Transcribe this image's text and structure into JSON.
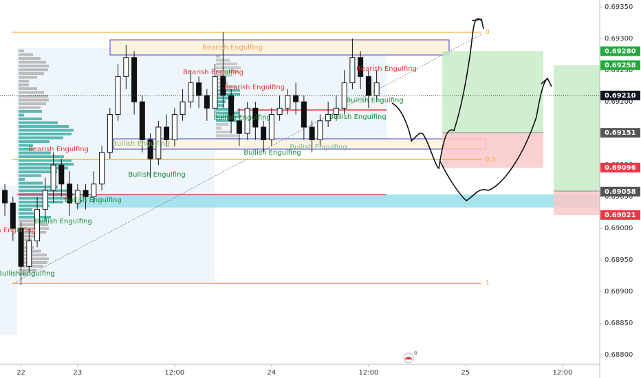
{
  "chart_data": {
    "type": "candlestick",
    "x": [
      15,
      16,
      17,
      18,
      19,
      20,
      21,
      22,
      23,
      24,
      25,
      26,
      27,
      28,
      29,
      30,
      31,
      32,
      33,
      34,
      35,
      36,
      37,
      38,
      39,
      40,
      41,
      42,
      43,
      44,
      45,
      46,
      47,
      48,
      49,
      50,
      51,
      52,
      53,
      54,
      55,
      56,
      57,
      58,
      59,
      60,
      61
    ],
    "open": [
      0.6906,
      0.6904,
      0.69,
      0.6894,
      0.6898,
      0.6903,
      0.6906,
      0.691,
      0.6907,
      0.6904,
      0.6906,
      0.6905,
      0.6907,
      0.6912,
      0.6918,
      0.6924,
      0.6927,
      0.692,
      0.6914,
      0.6911,
      0.6916,
      0.6914,
      0.6918,
      0.692,
      0.6923,
      0.6921,
      0.6919,
      0.6924,
      0.6921,
      0.6917,
      0.6915,
      0.6919,
      0.6916,
      0.6914,
      0.6918,
      0.6919,
      0.6921,
      0.692,
      0.6916,
      0.6914,
      0.6917,
      0.6918,
      0.6919,
      0.6923,
      0.6927,
      0.6924,
      0.6921
    ],
    "high": [
      0.6907,
      0.6905,
      0.6901,
      0.69,
      0.6905,
      0.6908,
      0.6912,
      0.6911,
      0.6909,
      0.6907,
      0.6907,
      0.6909,
      0.6913,
      0.6919,
      0.6926,
      0.6929,
      0.6928,
      0.6921,
      0.6915,
      0.6917,
      0.6918,
      0.6919,
      0.6922,
      0.6925,
      0.6924,
      0.6922,
      0.6926,
      0.6931,
      0.6922,
      0.6919,
      0.692,
      0.692,
      0.6917,
      0.6919,
      0.6921,
      0.6922,
      0.6923,
      0.6921,
      0.6917,
      0.6918,
      0.692,
      0.6921,
      0.6925,
      0.693,
      0.6928,
      0.6925,
      0.6925
    ],
    "low": [
      0.6902,
      0.6898,
      0.6891,
      0.6893,
      0.6897,
      0.6901,
      0.6904,
      0.6905,
      0.6902,
      0.6903,
      0.6903,
      0.6904,
      0.6906,
      0.6911,
      0.6917,
      0.6922,
      0.6918,
      0.6912,
      0.6908,
      0.691,
      0.6913,
      0.6913,
      0.6917,
      0.6919,
      0.6919,
      0.6917,
      0.6918,
      0.6919,
      0.6915,
      0.6913,
      0.6914,
      0.6914,
      0.6912,
      0.6913,
      0.6917,
      0.6918,
      0.6918,
      0.6914,
      0.6912,
      0.6913,
      0.6916,
      0.6917,
      0.6918,
      0.6922,
      0.6922,
      0.6919,
      0.692
    ],
    "close": [
      0.6904,
      0.69,
      0.6894,
      0.6898,
      0.6903,
      0.6906,
      0.691,
      0.6907,
      0.6904,
      0.6906,
      0.6905,
      0.6907,
      0.6912,
      0.6918,
      0.6924,
      0.6927,
      0.692,
      0.6914,
      0.6911,
      0.6916,
      0.6914,
      0.6918,
      0.692,
      0.6923,
      0.6921,
      0.6919,
      0.6924,
      0.6921,
      0.6917,
      0.6915,
      0.6919,
      0.6916,
      0.6914,
      0.6918,
      0.6919,
      0.6921,
      0.692,
      0.6916,
      0.6914,
      0.6917,
      0.6918,
      0.6919,
      0.6923,
      0.6927,
      0.6924,
      0.6921,
      0.6923
    ],
    "xlim": [
      14.4,
      88.6
    ],
    "xticks": [
      {
        "value": 17,
        "label": "22"
      },
      {
        "value": 24,
        "label": "23"
      },
      {
        "value": 36,
        "label": "12:00"
      },
      {
        "value": 48,
        "label": "24"
      },
      {
        "value": 60,
        "label": "12:00"
      },
      {
        "value": 72,
        "label": "25"
      },
      {
        "value": 84,
        "label": "12:00"
      }
    ],
    "ylim": [
      0.68785,
      0.69361
    ],
    "yticks": [
      {
        "value": 0.6935,
        "label": "0.69350"
      },
      {
        "value": 0.693,
        "label": "0.69300"
      },
      {
        "value": 0.6925,
        "label": "0.69250"
      },
      {
        "value": 0.692,
        "label": "0.69200"
      },
      {
        "value": 0.6915,
        "label": "0.69150"
      },
      {
        "value": 0.691,
        "label": "0.69100"
      },
      {
        "value": 0.6905,
        "label": "0.69050"
      },
      {
        "value": 0.69,
        "label": "0.69000"
      },
      {
        "value": 0.6895,
        "label": "0.68950"
      },
      {
        "value": 0.689,
        "label": "0.68900"
      },
      {
        "value": 0.6885,
        "label": "0.68850"
      },
      {
        "value": 0.688,
        "label": "0.68800"
      }
    ],
    "price_tags": [
      {
        "value": 0.6928,
        "label": "0.69280",
        "color": "#22ab3c"
      },
      {
        "value": 0.69258,
        "label": "0.69258",
        "color": "#22ab3c"
      },
      {
        "value": 0.6921,
        "label": "0.69210",
        "color": "#131722"
      },
      {
        "value": 0.69151,
        "label": "0.69151",
        "color": "#555555"
      },
      {
        "value": 0.69096,
        "label": "0.69096",
        "color": "#f23645"
      },
      {
        "value": 0.69058,
        "label": "0.69058",
        "color": "#555555"
      },
      {
        "value": 0.69021,
        "label": "0.69021",
        "color": "#f23645"
      }
    ],
    "fib_levels": [
      {
        "level": 0,
        "price": 0.6931
      },
      {
        "level": 0.5,
        "price": 0.69109
      },
      {
        "level": 1,
        "price": 0.68913
      }
    ],
    "annotations": [
      "Bearish Engulfing",
      "Bearish Engulfing",
      "Bearish Engulfing",
      "Bearish Engulfing",
      "Bearish Engulfing",
      "Bearish Engulfing",
      "Bullish Engulfing",
      "Bullish Engulfing",
      "Bullish Engulfing",
      "Bullish Engulfing",
      "Bullish Engulfing",
      "Bullish Engulfing",
      "Bullish Engulfing",
      "Bullish Engulfing",
      "Bullish Engulfing",
      "Bullish Engulfing"
    ],
    "logo_badge": 8
  }
}
